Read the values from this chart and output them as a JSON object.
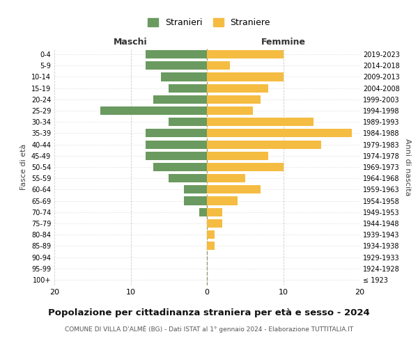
{
  "age_groups": [
    "100+",
    "95-99",
    "90-94",
    "85-89",
    "80-84",
    "75-79",
    "70-74",
    "65-69",
    "60-64",
    "55-59",
    "50-54",
    "45-49",
    "40-44",
    "35-39",
    "30-34",
    "25-29",
    "20-24",
    "15-19",
    "10-14",
    "5-9",
    "0-4"
  ],
  "birth_years": [
    "≤ 1923",
    "1924-1928",
    "1929-1933",
    "1934-1938",
    "1939-1943",
    "1944-1948",
    "1949-1953",
    "1954-1958",
    "1959-1963",
    "1964-1968",
    "1969-1973",
    "1974-1978",
    "1979-1983",
    "1984-1988",
    "1989-1993",
    "1994-1998",
    "1999-2003",
    "2004-2008",
    "2009-2013",
    "2014-2018",
    "2019-2023"
  ],
  "males": [
    0,
    0,
    0,
    0,
    0,
    0,
    1,
    3,
    3,
    5,
    7,
    8,
    8,
    8,
    5,
    14,
    7,
    5,
    6,
    8,
    8
  ],
  "females": [
    0,
    0,
    0,
    1,
    1,
    2,
    2,
    4,
    7,
    5,
    10,
    8,
    15,
    19,
    14,
    6,
    7,
    8,
    10,
    3,
    10
  ],
  "male_color": "#6a9a5f",
  "female_color": "#f5bc42",
  "background_color": "#ffffff",
  "grid_color": "#cccccc",
  "center_line_color": "#999977",
  "title": "Popolazione per cittadinanza straniera per età e sesso - 2024",
  "subtitle": "COMUNE DI VILLA D’ALMÈ (BG) - Dati ISTAT al 1° gennaio 2024 - Elaborazione TUTTITALIA.IT",
  "xlabel_left": "Maschi",
  "xlabel_right": "Femmine",
  "ylabel_left": "Fasce di età",
  "ylabel_right": "Anni di nascita",
  "legend_male": "Stranieri",
  "legend_female": "Straniere",
  "xlim": 20
}
